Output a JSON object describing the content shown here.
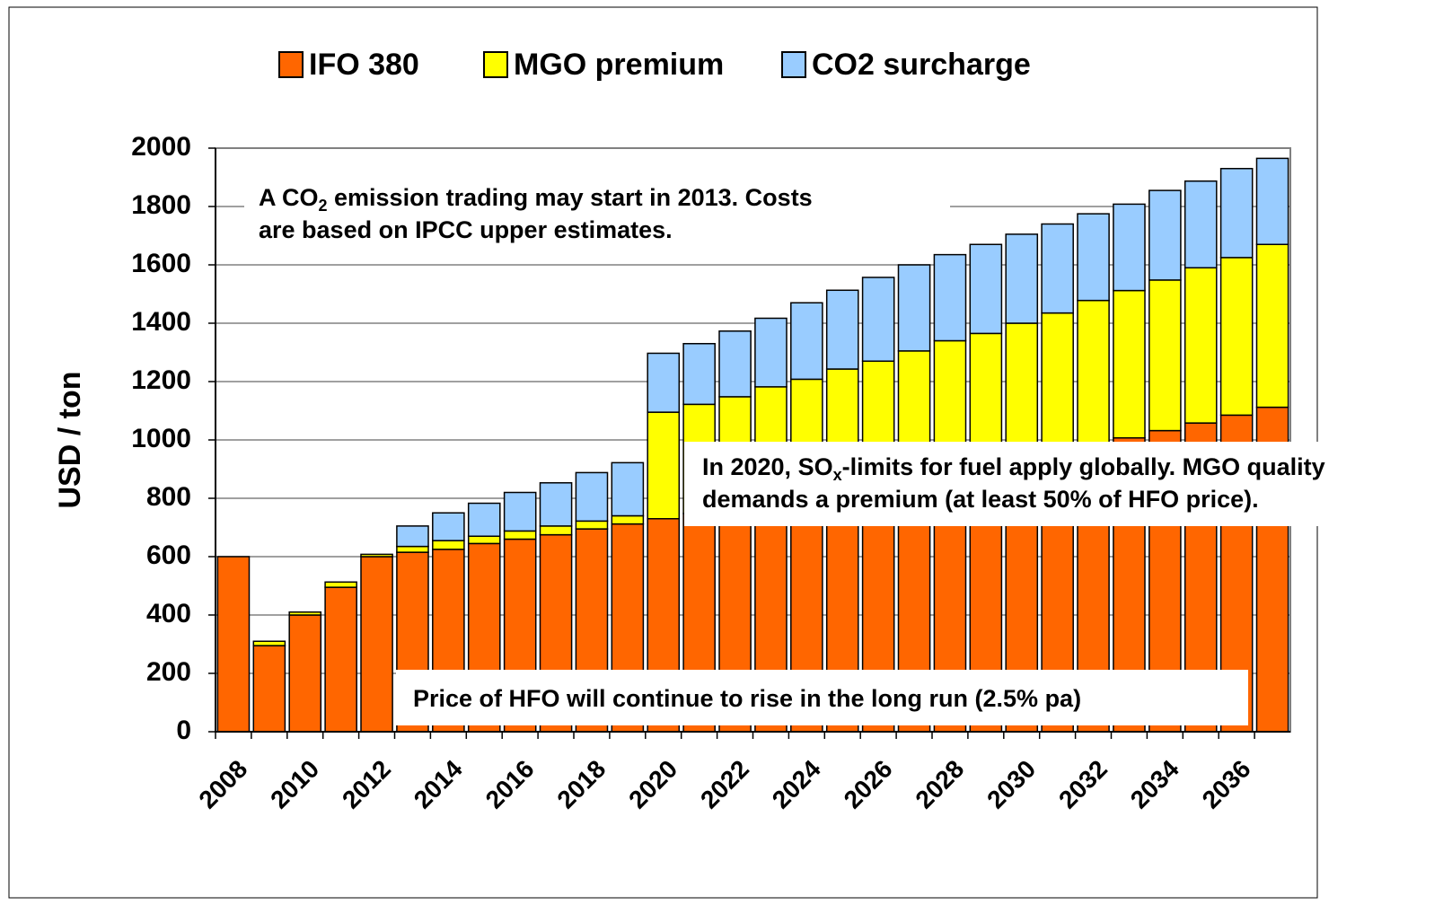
{
  "chart_data": {
    "type": "stacked_bar",
    "y_axis_label": "USD / ton",
    "categories": [
      "2008",
      null,
      "2010",
      null,
      "2012",
      null,
      "2014",
      null,
      "2016",
      null,
      "2018",
      null,
      "2020",
      null,
      "2022",
      null,
      "2024",
      null,
      "2026",
      null,
      "2028",
      null,
      "2030",
      null,
      "2032",
      null,
      "2034",
      null,
      "2036",
      null
    ],
    "series": [
      {
        "name": "IFO 380",
        "color": "#ff6600",
        "values": [
          600,
          295,
          400,
          495,
          600,
          615,
          625,
          645,
          660,
          675,
          695,
          712,
          730,
          748,
          767,
          786,
          806,
          826,
          847,
          868,
          890,
          912,
          935,
          958,
          982,
          1007,
          1032,
          1058,
          1085,
          1112
        ]
      },
      {
        "name": "MGO premium",
        "color": "#ffff00",
        "values": [
          0,
          15,
          10,
          18,
          8,
          20,
          30,
          25,
          28,
          30,
          27,
          28,
          365,
          374,
          381,
          396,
          402,
          417,
          423,
          437,
          450,
          453,
          465,
          477,
          496,
          505,
          516,
          532,
          540,
          558
        ]
      },
      {
        "name": "CO2 surcharge",
        "color": "#99ccff",
        "values": [
          0,
          0,
          0,
          0,
          0,
          70,
          95,
          113,
          132,
          148,
          166,
          182,
          202,
          208,
          225,
          235,
          262,
          270,
          287,
          295,
          295,
          305,
          305,
          305,
          297,
          296,
          307,
          297,
          305,
          295
        ]
      }
    ],
    "ylim": [
      0,
      2000
    ],
    "yticks": [
      0,
      200,
      400,
      600,
      800,
      1000,
      1200,
      1400,
      1600,
      1800,
      2000
    ],
    "grid": true,
    "legend": "top",
    "annotations": [
      {
        "before": "A CO",
        "sub": "2",
        "after": " emission trading may start in 2013. Costs",
        "line2": "are based on IPCC upper estimates."
      },
      {
        "before": "In 2020, SO",
        "sub": "x",
        "after": "-limits for fuel apply globally. MGO quality",
        "line2": "demands a premium (at least 50% of HFO price)."
      },
      {
        "before": "Price of HFO will continue to rise in the long run (2.5% pa)"
      }
    ]
  }
}
